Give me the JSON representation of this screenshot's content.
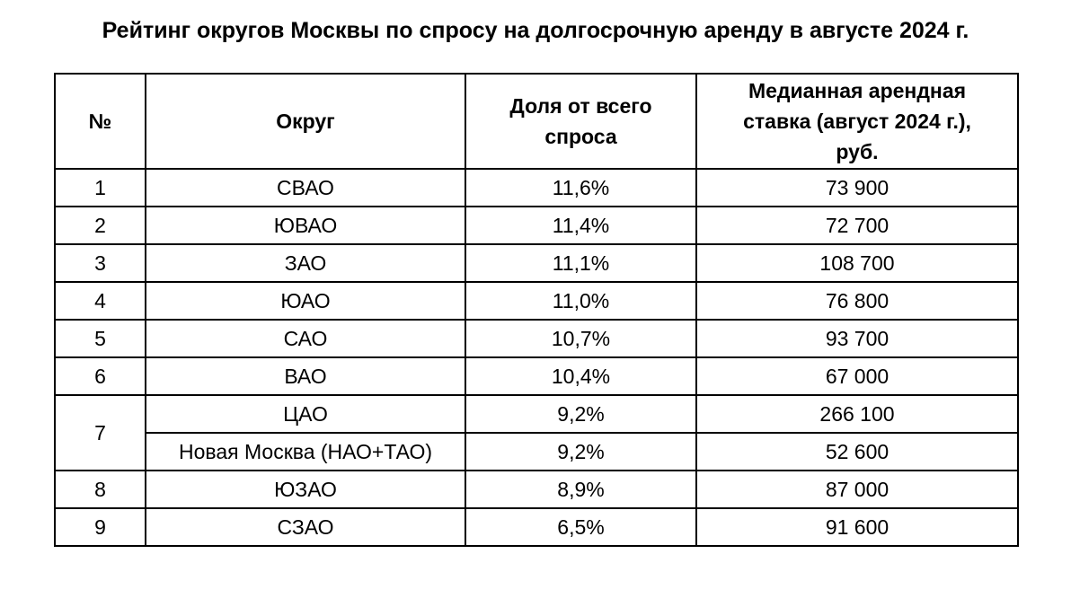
{
  "title": "Рейтинг округов Москвы по спросу на долгосрочную аренду в августе 2024 г.",
  "table": {
    "headers": {
      "num": "№",
      "district": "Округ",
      "share_line1": "Доля от всего",
      "share_line2": "спроса",
      "rate_line1": "Медианная арендная",
      "rate_line2": "ставка (август 2024 г.),",
      "rate_line3": "руб."
    },
    "rows": [
      {
        "num": "1",
        "district": "СВАО",
        "share": "11,6%",
        "rate": "73 900"
      },
      {
        "num": "2",
        "district": "ЮВАО",
        "share": "11,4%",
        "rate": "72 700"
      },
      {
        "num": "3",
        "district": "ЗАО",
        "share": "11,1%",
        "rate": "108 700"
      },
      {
        "num": "4",
        "district": "ЮАО",
        "share": "11,0%",
        "rate": "76 800"
      },
      {
        "num": "5",
        "district": "САО",
        "share": "10,7%",
        "rate": "93 700"
      },
      {
        "num": "6",
        "district": "ВАО",
        "share": "10,4%",
        "rate": "67 000"
      },
      {
        "num": "7",
        "district": "ЦАО",
        "share": "9,2%",
        "rate": "266 100"
      },
      {
        "num": "",
        "district": "Новая Москва (НАО+ТАО)",
        "share": "9,2%",
        "rate": "52 600"
      },
      {
        "num": "8",
        "district": "ЮЗАО",
        "share": "8,9%",
        "rate": "87 000"
      },
      {
        "num": "9",
        "district": "СЗАО",
        "share": "6,5%",
        "rate": "91 600"
      }
    ]
  }
}
